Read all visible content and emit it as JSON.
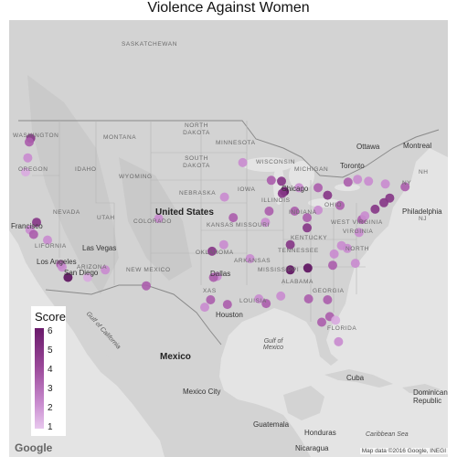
{
  "title": "Violence Against Women",
  "colors": {
    "low": "#e8c8ee",
    "mid": "#b06cb0",
    "high": "#5e1361",
    "land": "#d6d6d6",
    "water": "#e6e6e6"
  },
  "legend": {
    "title": "Score",
    "ticks": [
      "6",
      "5",
      "4",
      "3",
      "2",
      "1"
    ]
  },
  "labels": {
    "saskatchewan": "SASKATCHEWAN",
    "washington": "WASHINGTON",
    "montana": "MONTANA",
    "north_dakota": "NORTH DAKOTA",
    "minnesota": "MINNESOTA",
    "south_dakota": "SOUTH DAKOTA",
    "oregon": "OREGON",
    "idaho": "IDAHO",
    "wyoming": "WYOMING",
    "wisconsin": "WISCONSIN",
    "michigan": "MICHIGAN",
    "ottawa": "Ottawa",
    "montreal": "Montreal",
    "toronto": "Toronto",
    "nebraska": "NEBRASKA",
    "iowa": "IOWA",
    "chicago": "Chicago",
    "nevada": "NEVADA",
    "utah": "UTAH",
    "united_states": "United States",
    "colorado": "COLORADO",
    "kansas": "KANSAS",
    "illinois": "ILLINOIS",
    "indiana": "INDIANA",
    "ohio": "OHIO",
    "philadelphia": "Philadelphia",
    "nj": "NJ",
    "ny": "NY",
    "nh": "NH",
    "francisco": "Francisco",
    "california": "LIFORNIA",
    "las_vegas": "Las Vegas",
    "west_virginia": "WEST VIRGINIA",
    "virginia": "VIRGINIA",
    "kentucky": "KENTUCKY",
    "missouri": "MISSOURI",
    "tennessee": "TENNESSEE",
    "north_carolina": "NORTH",
    "oklahoma": "OKLAHOMA",
    "arkansas": "ARKANSAS",
    "los_angeles": "Los Angeles",
    "san_diego": "San Diego",
    "arizona": "ARIZONA",
    "new_mexico": "NEW MEXICO",
    "mississippi": "MISSISSIPPI",
    "alabama": "ALABAMA",
    "georgia": "GEORGIA",
    "dallas": "Dallas",
    "texas": "XAS",
    "louisiana": "LOUISIA",
    "houston": "Houston",
    "gulf_of_california": "Gulf of California",
    "florida": "FLORIDA",
    "mexico": "Mexico",
    "gulf_of_mexico": "Gulf of Mexico",
    "cuba": "Cuba",
    "mexico_city": "Mexico City",
    "guatemala": "Guatemala",
    "honduras": "Honduras",
    "nicaragua": "Nicaragua",
    "dominican_republic": "Dominican Republic",
    "caribbean_sea": "Caribbean Sea"
  },
  "points": [
    {
      "lon": -122.3,
      "lat": 47.6,
      "score": 5
    },
    {
      "lon": -122.5,
      "lat": 47.2,
      "score": 4
    },
    {
      "lon": -122.7,
      "lat": 45.5,
      "score": 3
    },
    {
      "lon": -123.0,
      "lat": 44.0,
      "score": 2
    },
    {
      "lon": -122.4,
      "lat": 37.8,
      "score": 3
    },
    {
      "lon": -121.9,
      "lat": 37.3,
      "score": 4
    },
    {
      "lon": -121.5,
      "lat": 38.6,
      "score": 5
    },
    {
      "lon": -120.0,
      "lat": 36.7,
      "score": 3
    },
    {
      "lon": -118.2,
      "lat": 34.1,
      "score": 4
    },
    {
      "lon": -117.2,
      "lat": 32.7,
      "score": 6
    },
    {
      "lon": -118.0,
      "lat": 33.8,
      "score": 3
    },
    {
      "lon": -114.5,
      "lat": 32.7,
      "score": 2
    },
    {
      "lon": -112.1,
      "lat": 33.5,
      "score": 3
    },
    {
      "lon": -106.5,
      "lat": 31.8,
      "score": 4
    },
    {
      "lon": -104.8,
      "lat": 39.0,
      "score": 3
    },
    {
      "lon": -98.5,
      "lat": 29.5,
      "score": 3
    },
    {
      "lon": -97.7,
      "lat": 30.3,
      "score": 4
    },
    {
      "lon": -97.5,
      "lat": 35.5,
      "score": 5
    },
    {
      "lon": -96.8,
      "lat": 32.8,
      "score": 3
    },
    {
      "lon": -97.3,
      "lat": 32.7,
      "score": 4
    },
    {
      "lon": -95.4,
      "lat": 29.8,
      "score": 4
    },
    {
      "lon": -95.9,
      "lat": 36.2,
      "score": 3
    },
    {
      "lon": -94.6,
      "lat": 39.1,
      "score": 4
    },
    {
      "lon": -95.8,
      "lat": 41.3,
      "score": 3
    },
    {
      "lon": -93.3,
      "lat": 45.0,
      "score": 3
    },
    {
      "lon": -92.3,
      "lat": 34.7,
      "score": 3
    },
    {
      "lon": -90.2,
      "lat": 38.6,
      "score": 3
    },
    {
      "lon": -90.1,
      "lat": 29.9,
      "score": 4
    },
    {
      "lon": -91.1,
      "lat": 30.4,
      "score": 3
    },
    {
      "lon": -89.7,
      "lat": 39.8,
      "score": 4
    },
    {
      "lon": -89.4,
      "lat": 43.1,
      "score": 4
    },
    {
      "lon": -88.0,
      "lat": 43.0,
      "score": 5
    },
    {
      "lon": -87.6,
      "lat": 41.9,
      "score": 6
    },
    {
      "lon": -87.9,
      "lat": 41.7,
      "score": 5
    },
    {
      "lon": -86.2,
      "lat": 39.8,
      "score": 4
    },
    {
      "lon": -86.8,
      "lat": 36.2,
      "score": 5
    },
    {
      "lon": -86.8,
      "lat": 33.5,
      "score": 6
    },
    {
      "lon": -88.1,
      "lat": 30.7,
      "score": 3
    },
    {
      "lon": -85.6,
      "lat": 42.3,
      "score": 3
    },
    {
      "lon": -84.4,
      "lat": 33.7,
      "score": 6
    },
    {
      "lon": -83.0,
      "lat": 42.3,
      "score": 4
    },
    {
      "lon": -83.0,
      "lat": 39.9,
      "score": 3
    },
    {
      "lon": -84.5,
      "lat": 38.0,
      "score": 5
    },
    {
      "lon": -84.5,
      "lat": 39.1,
      "score": 4
    },
    {
      "lon": -81.7,
      "lat": 41.5,
      "score": 5
    },
    {
      "lon": -80.8,
      "lat": 35.2,
      "score": 3
    },
    {
      "lon": -79.8,
      "lat": 36.1,
      "score": 3
    },
    {
      "lon": -81.0,
      "lat": 34.0,
      "score": 4
    },
    {
      "lon": -80.0,
      "lat": 40.4,
      "score": 4
    },
    {
      "lon": -79.0,
      "lat": 35.8,
      "score": 3
    },
    {
      "lon": -77.4,
      "lat": 37.5,
      "score": 3
    },
    {
      "lon": -77.0,
      "lat": 38.9,
      "score": 4
    },
    {
      "lon": -76.6,
      "lat": 39.3,
      "score": 3
    },
    {
      "lon": -75.2,
      "lat": 40.0,
      "score": 5
    },
    {
      "lon": -74.0,
      "lat": 40.7,
      "score": 5
    },
    {
      "lon": -73.2,
      "lat": 41.2,
      "score": 5
    },
    {
      "lon": -71.1,
      "lat": 42.4,
      "score": 4
    },
    {
      "lon": -73.8,
      "lat": 42.7,
      "score": 3
    },
    {
      "lon": -76.1,
      "lat": 43.0,
      "score": 3
    },
    {
      "lon": -78.9,
      "lat": 42.9,
      "score": 4
    },
    {
      "lon": -77.6,
      "lat": 43.2,
      "score": 3
    },
    {
      "lon": -81.7,
      "lat": 30.3,
      "score": 4
    },
    {
      "lon": -82.5,
      "lat": 27.9,
      "score": 4
    },
    {
      "lon": -81.4,
      "lat": 28.5,
      "score": 4
    },
    {
      "lon": -80.2,
      "lat": 25.8,
      "score": 3
    },
    {
      "lon": -80.6,
      "lat": 28.1,
      "score": 2
    },
    {
      "lon": -77.9,
      "lat": 34.2,
      "score": 3
    },
    {
      "lon": -84.3,
      "lat": 30.4,
      "score": 4
    }
  ],
  "attribution": "Map data ©2016 Google, INEGI",
  "google_logo": "Google"
}
